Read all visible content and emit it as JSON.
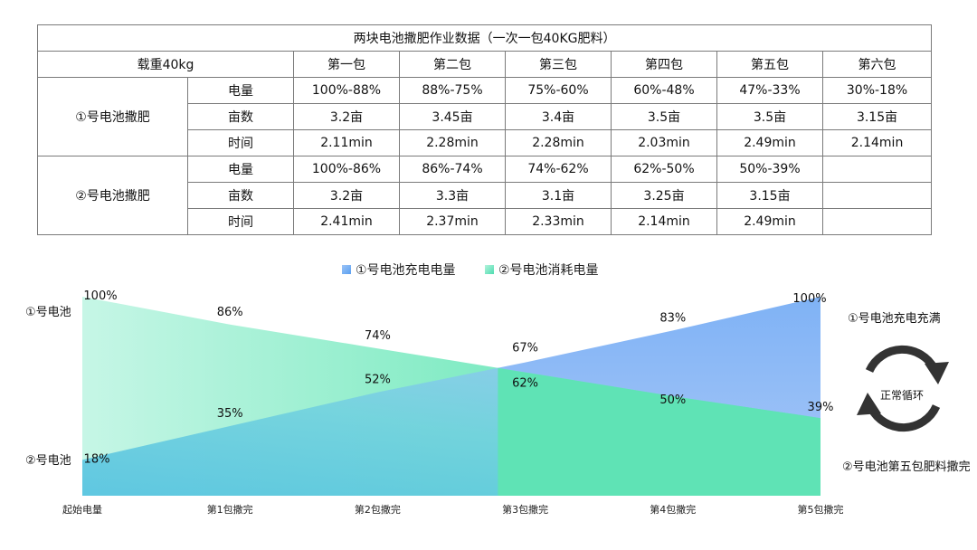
{
  "table": {
    "title": "两块电池撒肥作业数据（一次一包40KG肥料）",
    "load_label": "载重40kg",
    "columns": [
      "第一包",
      "第二包",
      "第三包",
      "第四包",
      "第五包",
      "第六包"
    ],
    "groups": [
      {
        "name": "①号电池撒肥",
        "rows": [
          {
            "label": "电量",
            "cells": [
              "100%-88%",
              "88%-75%",
              "75%-60%",
              "60%-48%",
              "47%-33%",
              "30%-18%"
            ]
          },
          {
            "label": "亩数",
            "cells": [
              "3.2亩",
              "3.45亩",
              "3.4亩",
              "3.5亩",
              "3.5亩",
              "3.15亩"
            ]
          },
          {
            "label": "时间",
            "cells": [
              "2.11min",
              "2.28min",
              "2.28min",
              "2.03min",
              "2.49min",
              "2.14min"
            ]
          }
        ]
      },
      {
        "name": "②号电池撒肥",
        "rows": [
          {
            "label": "电量",
            "cells": [
              "100%-86%",
              "86%-74%",
              "74%-62%",
              "62%-50%",
              "50%-39%",
              ""
            ]
          },
          {
            "label": "亩数",
            "cells": [
              "3.2亩",
              "3.3亩",
              "3.1亩",
              "3.25亩",
              "3.15亩",
              ""
            ]
          },
          {
            "label": "时间",
            "cells": [
              "2.41min",
              "2.37min",
              "2.33min",
              "2.14min",
              "2.49min",
              ""
            ]
          }
        ]
      }
    ]
  },
  "chart_data": {
    "type": "area",
    "categories": [
      "起始电量",
      "第1包撒完",
      "第2包撒完",
      "第3包撒完",
      "第4包撒完",
      "第5包撒完"
    ],
    "ylim": [
      0,
      100
    ],
    "legend_position": "top-center",
    "series": [
      {
        "name": "①号电池充电电量",
        "values": [
          18,
          35,
          52,
          67,
          83,
          100
        ],
        "labels": [
          "18%",
          "35%",
          "52%",
          "67%",
          "83%",
          "100%"
        ],
        "color": "#7fb2f5"
      },
      {
        "name": "②号电池消耗电量",
        "values": [
          100,
          86,
          74,
          62,
          50,
          39
        ],
        "labels": [
          "100%",
          "86%",
          "74%",
          "62%",
          "50%",
          "39%"
        ],
        "color": "#5fe3b5"
      }
    ],
    "annotations": {
      "left_top": "①号电池",
      "left_bottom": "②号电池",
      "right_top": "①号电池充电充满",
      "right_bottom": "②号电池第五包肥料撒完",
      "cycle": "正常循环"
    }
  }
}
